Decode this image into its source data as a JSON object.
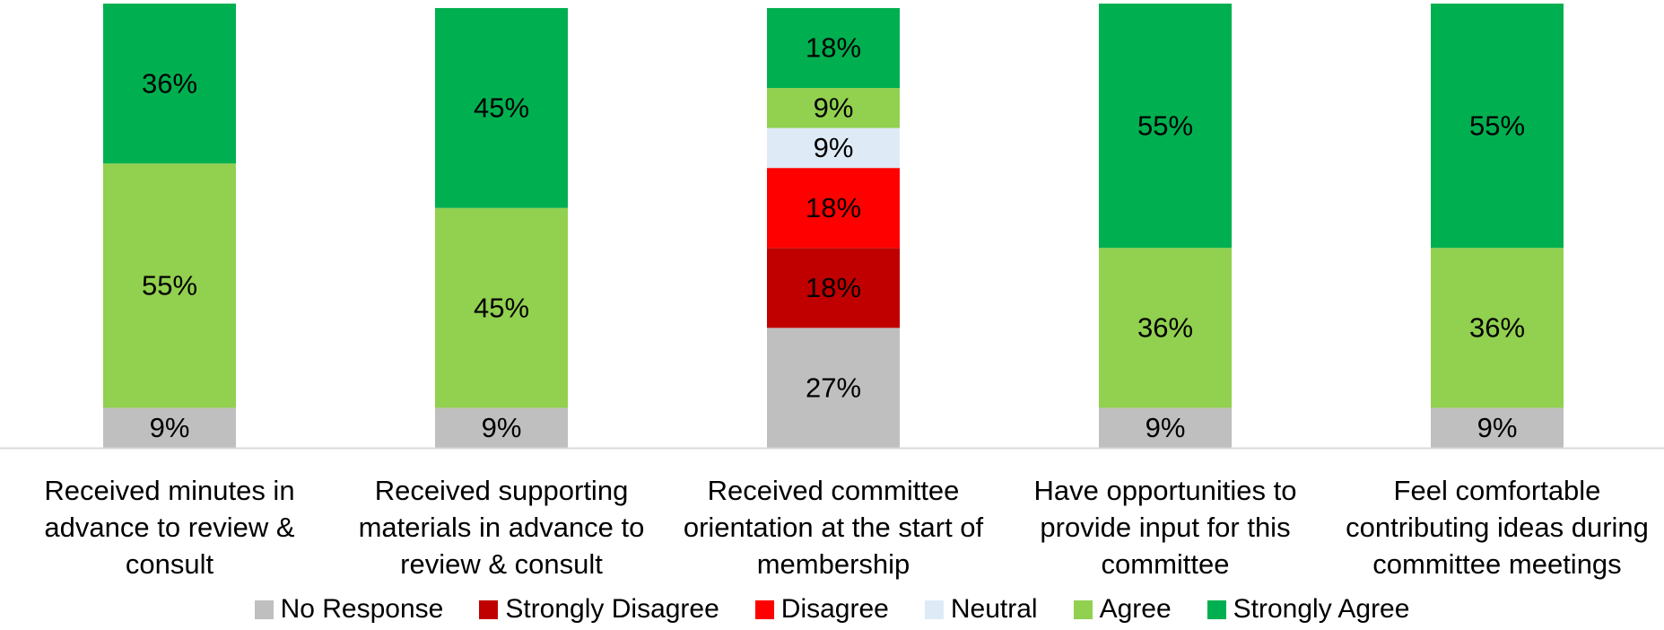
{
  "chart_data": {
    "type": "stacked_bar",
    "categories": [
      "Received minutes in advance to review & consult",
      "Received supporting materials in advance to review & consult",
      "Received committee orientation at the start of membership",
      "Have opportunities to provide input for this committee",
      "Feel comfortable contributing ideas during committee meetings"
    ],
    "series": [
      {
        "name": "No Response",
        "color": "#bfbfbf",
        "values": [
          9,
          9,
          27,
          9,
          9
        ],
        "value_labels": [
          "9%",
          "9%",
          "27%",
          "9%",
          "9%"
        ]
      },
      {
        "name": "Strongly Disagree",
        "color": "#c00000",
        "values": [
          null,
          null,
          18,
          null,
          null
        ],
        "value_labels": [
          null,
          null,
          "18%",
          null,
          null
        ]
      },
      {
        "name": "Disagree",
        "color": "#ff0000",
        "values": [
          null,
          null,
          18,
          null,
          null
        ],
        "value_labels": [
          null,
          null,
          "18%",
          null,
          null
        ]
      },
      {
        "name": "Neutral",
        "color": "#deebf7",
        "values": [
          null,
          null,
          9,
          null,
          null
        ],
        "value_labels": [
          null,
          null,
          "9%",
          null,
          null
        ]
      },
      {
        "name": "Agree",
        "color": "#92d050",
        "values": [
          55,
          45,
          9,
          36,
          36
        ],
        "value_labels": [
          "55%",
          "45%",
          "9%",
          "36%",
          "36%"
        ]
      },
      {
        "name": "Strongly Agree",
        "color": "#00b050",
        "values": [
          36,
          45,
          18,
          55,
          55
        ],
        "value_labels": [
          "36%",
          "45%",
          "18%",
          "55%",
          "55%"
        ]
      }
    ],
    "ylim": [
      0,
      100
    ],
    "legend": "bottom"
  }
}
